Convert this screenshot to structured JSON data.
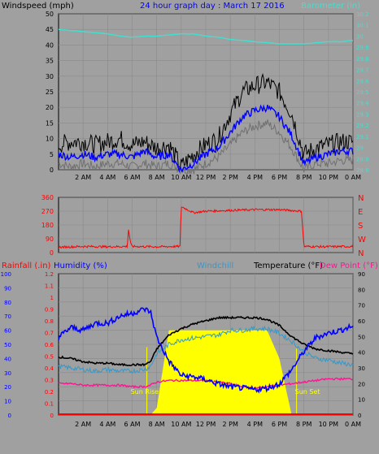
{
  "header": {
    "wind_label": "Windspeed (mph)",
    "title": "24 hour graph day : March 17 2016",
    "baro_label": "Barometer (in)"
  },
  "labels2": {
    "rain": "Rainfall (.in)",
    "humidity": "Humidity (%)",
    "windchill": "Windchill",
    "temp": "Temperature (°F)",
    "dewpoint": "Dew Point (°F)",
    "sunrise": "Sun Rise",
    "sunset": "Sun Set"
  },
  "colors": {
    "background": "#a0a0a0",
    "wind_max": "#000000",
    "wind_avg": "#0000ff",
    "wind_min": "#707070",
    "barometer": "#40e0d0",
    "direction": "#ff0000",
    "humidity": "#0000ff",
    "temperature": "#000000",
    "windchill": "#3399cc",
    "dewpoint": "#ff1493",
    "solar": "#ffff00",
    "rain": "#ff0000"
  },
  "chart_data": [
    {
      "type": "line",
      "name": "wind-baro",
      "xlabel": "",
      "x_ticks": [
        "2 AM",
        "4 AM",
        "6 AM",
        "8 AM",
        "10 AM",
        "12 PM",
        "2 PM",
        "4 PM",
        "6 PM",
        "8 PM",
        "10 PM",
        "0 AM"
      ],
      "ylabel": "Windspeed (mph)",
      "ylim": [
        0,
        50
      ],
      "y_ticks": [
        0,
        5,
        10,
        15,
        20,
        25,
        30,
        35,
        40,
        45,
        50
      ],
      "y2label": "Barometer (in)",
      "y2lim": [
        28.8,
        30.2
      ],
      "y2_ticks": [
        "28.8",
        "28.9",
        "29",
        "29.1",
        "29.2",
        "29.3",
        "29.4",
        "29.5",
        "29.6",
        "29.7",
        "29.8",
        "29.9",
        "30",
        "30.1",
        "30.2"
      ],
      "x_hours": [
        0,
        1,
        2,
        3,
        4,
        5,
        6,
        7,
        8,
        9,
        10,
        11,
        12,
        13,
        14,
        15,
        16,
        17,
        18,
        19,
        20,
        21,
        22,
        23,
        24
      ],
      "series": [
        {
          "key": "wind_max",
          "values": [
            8,
            9,
            9,
            8,
            9,
            10,
            8,
            9,
            7,
            8,
            1,
            5,
            8,
            10,
            18,
            25,
            27,
            28,
            25,
            18,
            5,
            7,
            8,
            9,
            9
          ]
        },
        {
          "key": "wind_avg",
          "values": [
            5,
            4,
            5,
            4,
            5,
            5,
            4,
            6,
            4,
            5,
            0,
            2,
            5,
            7,
            12,
            17,
            19,
            20,
            17,
            11,
            2,
            4,
            5,
            6,
            6
          ]
        },
        {
          "key": "wind_min",
          "values": [
            2,
            1,
            2,
            1,
            2,
            2,
            1,
            2,
            1,
            2,
            0,
            0,
            2,
            4,
            8,
            12,
            14,
            15,
            12,
            7,
            0,
            2,
            2,
            3,
            3
          ]
        },
        {
          "key": "barometer",
          "values": [
            30.06,
            30.05,
            30.04,
            30.03,
            30.02,
            30.0,
            29.99,
            30.0,
            30.0,
            30.01,
            30.02,
            30.02,
            30.0,
            29.99,
            29.97,
            29.96,
            29.95,
            29.94,
            29.93,
            29.93,
            29.93,
            29.94,
            29.95,
            29.95,
            29.96
          ]
        }
      ]
    },
    {
      "type": "line",
      "name": "wind-direction",
      "ylim": [
        0,
        360
      ],
      "y_ticks": [
        0,
        90,
        180,
        270,
        360
      ],
      "y2_ticks": [
        "N",
        "W",
        "S",
        "E",
        "N"
      ],
      "x_ticks": [],
      "x_hours": [
        0,
        2,
        4,
        5.6,
        5.7,
        5.9,
        6,
        8,
        9.9,
        10,
        11,
        12,
        14,
        16,
        18,
        19.8,
        20,
        22,
        24
      ],
      "values": [
        35,
        40,
        38,
        40,
        150,
        50,
        40,
        38,
        40,
        300,
        260,
        270,
        275,
        280,
        280,
        270,
        40,
        38,
        40
      ]
    },
    {
      "type": "line",
      "name": "temp-humidity",
      "x_ticks": [
        "2 AM",
        "4 AM",
        "6 AM",
        "8 AM",
        "10 AM",
        "12 PM",
        "2 PM",
        "4 PM",
        "6 PM",
        "8 PM",
        "10 PM",
        "0 AM"
      ],
      "y_left_humidity_lim": [
        0,
        100
      ],
      "y_left_humidity_ticks": [
        0,
        10,
        20,
        30,
        40,
        50,
        60,
        70,
        80,
        90,
        100
      ],
      "y_left_rain_lim": [
        0,
        1.2
      ],
      "y_left_rain_ticks": [
        "0",
        "0.1",
        "0.2",
        "0.3",
        "0.4",
        "0.5",
        "0.6",
        "0.7",
        "0.8",
        "0.9",
        "1",
        "1.1",
        "1.2"
      ],
      "y_right_lim": [
        0,
        90
      ],
      "y_right_ticks": [
        0,
        10,
        20,
        30,
        40,
        50,
        60,
        70,
        80,
        90
      ],
      "x_hours": [
        0,
        1,
        2,
        3,
        4,
        5,
        6,
        7,
        7.5,
        8,
        9,
        10,
        11,
        12,
        13,
        14,
        15,
        16,
        17,
        18,
        19,
        20,
        21,
        22,
        23,
        24
      ],
      "series": [
        {
          "key": "humidity",
          "values": [
            55,
            62,
            60,
            65,
            65,
            70,
            72,
            75,
            73,
            55,
            38,
            28,
            27,
            25,
            22,
            20,
            19,
            18,
            19,
            22,
            32,
            45,
            55,
            58,
            60,
            63
          ]
        },
        {
          "key": "temperature",
          "values": [
            37,
            36,
            34,
            33,
            33,
            32,
            32,
            32,
            34,
            42,
            51,
            55,
            58,
            60,
            62,
            62,
            62,
            62,
            61,
            57,
            50,
            45,
            42,
            41,
            40,
            39
          ]
        },
        {
          "key": "windchill",
          "values": [
            31,
            30,
            29,
            28,
            29,
            28,
            28,
            29,
            31,
            39,
            45,
            48,
            49,
            50,
            51,
            54,
            54,
            55,
            55,
            52,
            47,
            40,
            36,
            35,
            33,
            32
          ]
        },
        {
          "key": "dewpoint",
          "values": [
            20,
            20,
            19,
            19,
            19,
            19,
            18,
            18,
            19,
            21,
            22,
            22,
            22,
            22,
            21,
            20,
            18,
            17,
            18,
            19,
            20,
            21,
            22,
            23,
            23,
            23
          ]
        },
        {
          "key": "solar",
          "values": [
            0,
            0,
            0,
            0,
            0,
            0,
            0,
            0,
            0,
            5,
            60,
            60,
            60,
            60,
            60,
            60,
            60,
            60,
            60,
            40,
            0,
            0,
            0,
            0,
            0,
            0
          ]
        }
      ],
      "sunrise_hour": 7.2,
      "sunset_hour": 19.4
    }
  ]
}
